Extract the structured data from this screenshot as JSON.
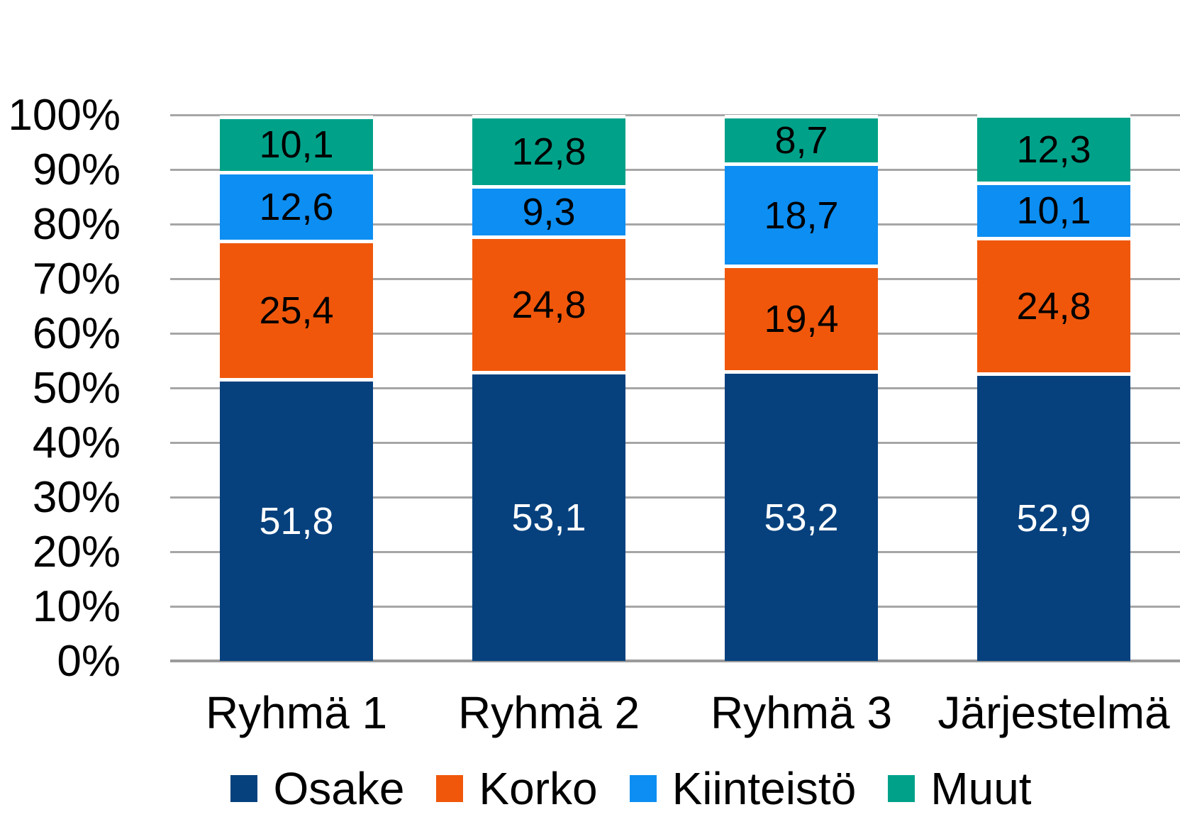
{
  "chart_data": {
    "type": "bar",
    "variant": "stacked-100-percent-column",
    "title": "",
    "xlabel": "",
    "ylabel": "",
    "grid": true,
    "legend_position": "bottom",
    "number_format": "comma-decimal",
    "categories": [
      "Ryhmä 1",
      "Ryhmä 2",
      "Ryhmä 3",
      "Järjestelmä"
    ],
    "series": [
      {
        "name": "Osake",
        "color": "#06417e",
        "label_color": "#ffffff",
        "values": [
          51.8,
          53.1,
          53.2,
          52.9
        ],
        "display_labels": [
          "51,8",
          "53,1",
          "53,2",
          "52,9"
        ]
      },
      {
        "name": "Korko",
        "color": "#f0570b",
        "label_color": "#000000",
        "values": [
          25.4,
          24.8,
          19.4,
          24.8
        ],
        "display_labels": [
          "25,4",
          "24,8",
          "19,4",
          "24,8"
        ]
      },
      {
        "name": "Kiinteistö",
        "color": "#0d8ef2",
        "label_color": "#000000",
        "values": [
          12.6,
          9.3,
          18.7,
          10.1
        ],
        "display_labels": [
          "12,6",
          "9,3",
          "18,7",
          "10,1"
        ]
      },
      {
        "name": "Muut",
        "color": "#00a189",
        "label_color": "#000000",
        "values": [
          10.1,
          12.8,
          8.7,
          12.3
        ],
        "display_labels": [
          "10,1",
          "12,8",
          "8,7",
          "12,3"
        ]
      }
    ],
    "y_axis": {
      "min": 0,
      "max": 100,
      "step": 10,
      "tick_labels": [
        "100%",
        "90%",
        "80%",
        "70%",
        "60%",
        "50%",
        "40%",
        "30%",
        "20%",
        "10%",
        "0%"
      ]
    },
    "colors": {
      "gridline": "#a6a6a6",
      "axis_line": "#9b9b9b",
      "background": "#ffffff",
      "separator": "#ffffff"
    }
  }
}
